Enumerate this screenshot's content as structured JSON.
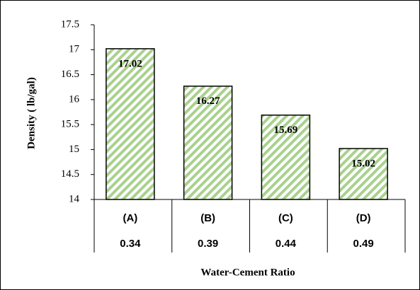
{
  "chart_data": {
    "type": "bar",
    "categories": [
      "(A)",
      "(B)",
      "(C)",
      "(D)"
    ],
    "category_values": [
      "0.34",
      "0.39",
      "0.44",
      "0.49"
    ],
    "values": [
      17.02,
      16.27,
      15.69,
      15.02
    ],
    "color": "#a9d18e",
    "x_label": "Water-Cement Ratio",
    "y_label": "Density ( lb/gal)",
    "ylim": [
      14,
      17.5
    ],
    "yticks": [
      14,
      14.5,
      15,
      15.5,
      16,
      16.5,
      17,
      17.5
    ],
    "grid": false
  }
}
